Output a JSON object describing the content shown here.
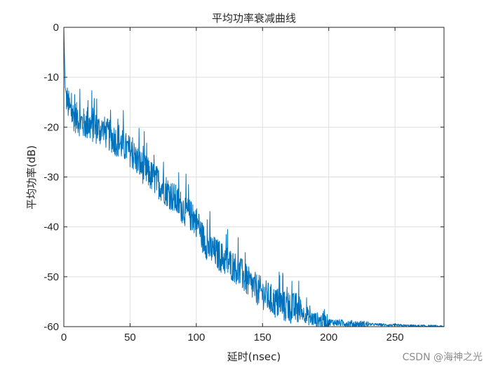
{
  "chart_data": {
    "type": "line",
    "title": "平均功率衰减曲线",
    "xlabel": "延时(nsec)",
    "ylabel": "平均功率(dB)",
    "xlim": [
      0,
      287
    ],
    "ylim": [
      -60,
      0
    ],
    "xticks": [
      0,
      50,
      100,
      150,
      200,
      250
    ],
    "yticks": [
      0,
      -10,
      -20,
      -30,
      -40,
      -50,
      -60
    ],
    "xtick_labels": [
      "0",
      "50",
      "100",
      "150",
      "200",
      "250"
    ],
    "ytick_labels": [
      "0",
      "-10",
      "-20",
      "-30",
      "-40",
      "-50",
      "-60"
    ],
    "grid": true,
    "line_color": "#0072BD",
    "series": [
      {
        "x": [
          0,
          1,
          3,
          6,
          10,
          15,
          20,
          25,
          30,
          40,
          50,
          60,
          70,
          80,
          90,
          100,
          105,
          110,
          120,
          130,
          140,
          150,
          160,
          170,
          175,
          180,
          185,
          190,
          200,
          210,
          220,
          230,
          240,
          250,
          260,
          270,
          280,
          287
        ],
        "values": [
          0,
          -12,
          -15,
          -17,
          -18,
          -19,
          -19.5,
          -20,
          -20.5,
          -22.5,
          -24.5,
          -28,
          -30.5,
          -33,
          -36,
          -38.5,
          -42,
          -44,
          -46,
          -48,
          -51,
          -53,
          -55,
          -56,
          -56,
          -57,
          -58,
          -58.5,
          -59,
          -59.2,
          -59.4,
          -59.5,
          -59.6,
          -59.7,
          -59.8,
          -59.85,
          -59.9,
          -60
        ]
      }
    ]
  },
  "watermark": "CSDN @海神之光"
}
